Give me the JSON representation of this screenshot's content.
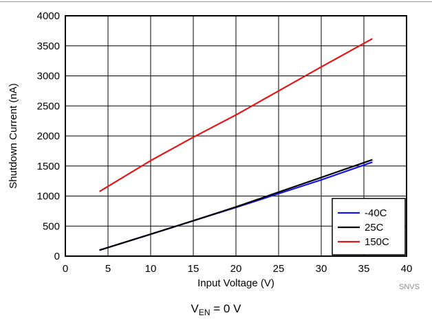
{
  "chart_data": {
    "type": "line",
    "xlabel": "Input Voltage (V)",
    "ylabel": "Shutdown Current (nA)",
    "xlim": [
      0,
      40
    ],
    "ylim": [
      0,
      4000
    ],
    "xticks": [
      0,
      5,
      10,
      15,
      20,
      25,
      30,
      35,
      40
    ],
    "yticks": [
      0,
      500,
      1000,
      1500,
      2000,
      2500,
      3000,
      3500,
      4000
    ],
    "grid": true,
    "legend_position": "bottom-right",
    "series": [
      {
        "name": "-40C",
        "color": "#1515e6",
        "x": [
          4,
          10,
          15,
          20,
          25,
          30,
          36
        ],
        "y": [
          100,
          365,
          590,
          810,
          1040,
          1270,
          1565
        ]
      },
      {
        "name": "25C",
        "color": "#000000",
        "x": [
          4,
          10,
          15,
          20,
          25,
          30,
          36
        ],
        "y": [
          100,
          365,
          590,
          820,
          1065,
          1310,
          1605
        ]
      },
      {
        "name": "150C",
        "color": "#e31515",
        "x": [
          4,
          10,
          15,
          20,
          25,
          30,
          36
        ],
        "y": [
          1075,
          1590,
          1980,
          2350,
          2750,
          3150,
          3620
        ]
      }
    ]
  },
  "watermark": "SNVS",
  "caption": {
    "main": "V",
    "sub": "EN",
    "rest": " = 0 V"
  }
}
